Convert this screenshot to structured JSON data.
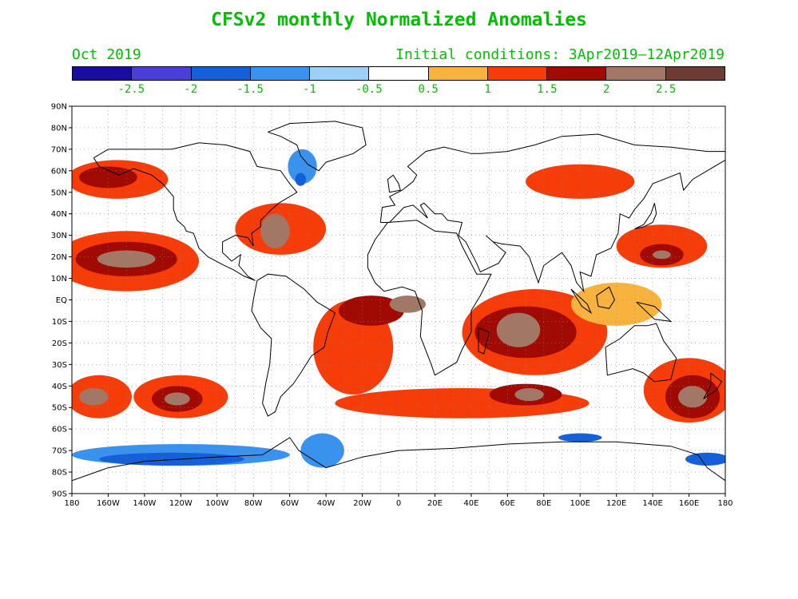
{
  "header": {
    "title": "CFSv2 monthly Normalized Anomalies",
    "valid": "Oct 2019",
    "initial": "Initial conditions: 3Apr2019–12Apr2019",
    "text_color": "#00c000"
  },
  "colorbar": {
    "colors": [
      "#1a0ca0",
      "#4a3ed8",
      "#1560d8",
      "#3a92ef",
      "#9dd0f8",
      "#ffffff",
      "#f8b23e",
      "#f63c08",
      "#a00a02",
      "#a37766",
      "#6e3b32"
    ],
    "labels": [
      "-2.5",
      "-2",
      "-1.5",
      "-1",
      "-0.5",
      "0.5",
      "1",
      "1.5",
      "2",
      "2.5"
    ]
  },
  "map": {
    "lat_labels": [
      "90N",
      "80N",
      "70N",
      "60N",
      "50N",
      "40N",
      "30N",
      "20N",
      "10N",
      "EQ",
      "10S",
      "20S",
      "30S",
      "40S",
      "50S",
      "60S",
      "70S",
      "80S",
      "90S"
    ],
    "lon_labels": [
      "180",
      "160W",
      "140W",
      "120W",
      "100W",
      "80W",
      "60W",
      "40W",
      "20W",
      "0",
      "20E",
      "40E",
      "60E",
      "80E",
      "100E",
      "120E",
      "140E",
      "160E",
      "180"
    ],
    "anomaly_regions": [
      {
        "level": 1,
        "lon": -150,
        "lat": 18,
        "rx": 40,
        "ry": 14
      },
      {
        "level": 2,
        "lon": -150,
        "lat": 19,
        "rx": 28,
        "ry": 8
      },
      {
        "level": 3,
        "lon": -150,
        "lat": 19,
        "rx": 16,
        "ry": 4
      },
      {
        "level": 1,
        "lon": -155,
        "lat": 56,
        "rx": 28,
        "ry": 9
      },
      {
        "level": 2,
        "lon": -160,
        "lat": 57,
        "rx": 16,
        "ry": 5
      },
      {
        "level": 1,
        "lon": -165,
        "lat": -45,
        "rx": 18,
        "ry": 10
      },
      {
        "level": 3,
        "lon": -168,
        "lat": -45,
        "rx": 8,
        "ry": 4
      },
      {
        "level": 1,
        "lon": -120,
        "lat": -45,
        "rx": 26,
        "ry": 10
      },
      {
        "level": 2,
        "lon": -122,
        "lat": -46,
        "rx": 14,
        "ry": 6
      },
      {
        "level": 3,
        "lon": -122,
        "lat": -46,
        "rx": 7,
        "ry": 3
      },
      {
        "level": 1,
        "lon": -65,
        "lat": 33,
        "rx": 25,
        "ry": 12
      },
      {
        "level": 3,
        "lon": -68,
        "lat": 32,
        "rx": 8,
        "ry": 8
      },
      {
        "level": 1,
        "lon": -25,
        "lat": -22,
        "rx": 22,
        "ry": 22
      },
      {
        "level": 2,
        "lon": -15,
        "lat": -5,
        "rx": 18,
        "ry": 7
      },
      {
        "level": 3,
        "lon": 5,
        "lat": -2,
        "rx": 10,
        "ry": 4
      },
      {
        "level": 1,
        "lon": 75,
        "lat": -15,
        "rx": 40,
        "ry": 20
      },
      {
        "level": 2,
        "lon": 70,
        "lat": -15,
        "rx": 28,
        "ry": 12
      },
      {
        "level": 3,
        "lon": 66,
        "lat": -14,
        "rx": 12,
        "ry": 8
      },
      {
        "level": 1,
        "lon": 35,
        "lat": -48,
        "rx": 70,
        "ry": 7
      },
      {
        "level": 2,
        "lon": 70,
        "lat": -44,
        "rx": 20,
        "ry": 5
      },
      {
        "level": 3,
        "lon": 72,
        "lat": -44,
        "rx": 8,
        "ry": 3
      },
      {
        "level": 1,
        "lon": 160,
        "lat": -42,
        "rx": 25,
        "ry": 15
      },
      {
        "level": 2,
        "lon": 162,
        "lat": -45,
        "rx": 15,
        "ry": 10
      },
      {
        "level": 3,
        "lon": 162,
        "lat": -45,
        "rx": 8,
        "ry": 5
      },
      {
        "level": 1,
        "lon": 145,
        "lat": 25,
        "rx": 25,
        "ry": 10
      },
      {
        "level": 2,
        "lon": 145,
        "lat": 21,
        "rx": 12,
        "ry": 5
      },
      {
        "level": 3,
        "lon": 145,
        "lat": 21,
        "rx": 5,
        "ry": 2
      },
      {
        "level": 1,
        "lon": 100,
        "lat": 55,
        "rx": 30,
        "ry": 8
      },
      {
        "level": 0,
        "lon": 120,
        "lat": -2,
        "rx": 25,
        "ry": 10
      },
      {
        "level": -1,
        "lon": -120,
        "lat": -72,
        "rx": 60,
        "ry": 5
      },
      {
        "level": -2,
        "lon": -125,
        "lat": -74,
        "rx": 40,
        "ry": 3
      },
      {
        "level": -1,
        "lon": -42,
        "lat": -70,
        "rx": 12,
        "ry": 8
      },
      {
        "level": -1,
        "lon": -53,
        "lat": 62,
        "rx": 8,
        "ry": 8
      },
      {
        "level": -2,
        "lon": -54,
        "lat": 56,
        "rx": 3,
        "ry": 3
      },
      {
        "level": -2,
        "lon": 100,
        "lat": -64,
        "rx": 12,
        "ry": 2
      },
      {
        "level": -2,
        "lon": 170,
        "lat": -74,
        "rx": 12,
        "ry": 3
      }
    ]
  }
}
